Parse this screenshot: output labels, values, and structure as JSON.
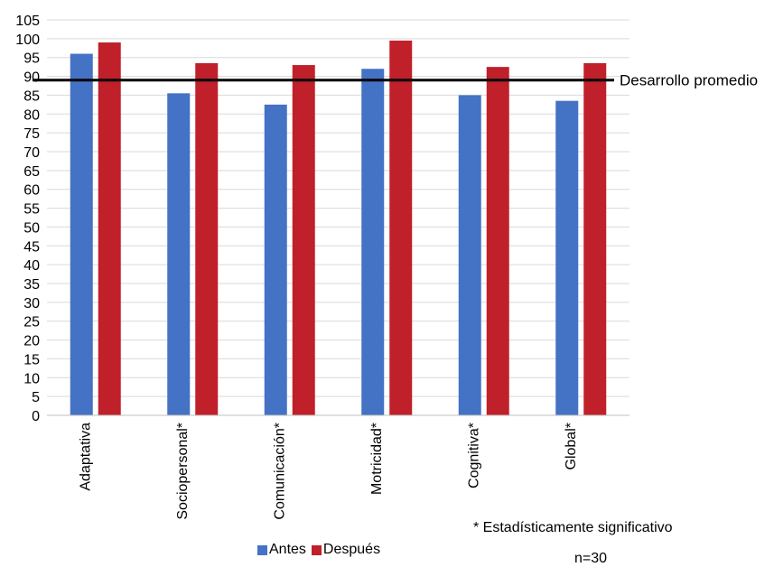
{
  "chart_data": {
    "type": "bar",
    "categories": [
      "Adaptativa",
      "Sociopersonal*",
      "Comunicación*",
      "Motricidad*",
      "Cognitiva*",
      "Global*"
    ],
    "series": [
      {
        "name": "Antes",
        "values": [
          96,
          85.5,
          82.5,
          92,
          85,
          83.5
        ],
        "color": "#4472c4"
      },
      {
        "name": "Después",
        "values": [
          99,
          93.5,
          93,
          99.5,
          92.5,
          93.5
        ],
        "color": "#c0202a"
      }
    ],
    "y_ticks": [
      "0",
      "5",
      "10",
      "15",
      "20",
      "25",
      "30",
      "35",
      "40",
      "45",
      "50",
      "55",
      "60",
      "65",
      "70",
      "75",
      "80",
      "85",
      "90",
      "95",
      "100",
      "105"
    ],
    "ylim": [
      0,
      105
    ],
    "grid": true,
    "reference_line": {
      "value": 89,
      "label": "Desarrollo promedio",
      "color": "#000000"
    },
    "legend_position": "bottom"
  },
  "notes": {
    "significance": "* Estadísticamente significativo",
    "sample": "n=30"
  }
}
